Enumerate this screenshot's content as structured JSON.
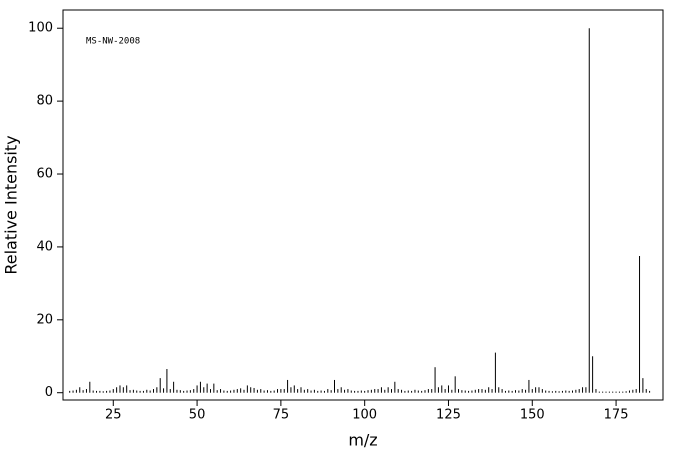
{
  "chart_data": {
    "type": "stem",
    "annotation": "MS-NW-2008",
    "xlabel": "m/z",
    "ylabel": "Relative Intensity",
    "color": "#000000",
    "xlim": [
      10,
      189
    ],
    "ylim": [
      -2,
      105
    ],
    "xticks": [
      25,
      50,
      75,
      100,
      125,
      150,
      175
    ],
    "yticks": [
      0,
      20,
      40,
      60,
      80,
      100
    ],
    "x": [
      12,
      13,
      14,
      15,
      16,
      17,
      18,
      19,
      20,
      21,
      22,
      23,
      24,
      25,
      26,
      27,
      28,
      29,
      30,
      31,
      32,
      33,
      34,
      35,
      36,
      37,
      38,
      39,
      40,
      41,
      42,
      43,
      44,
      45,
      46,
      47,
      48,
      49,
      50,
      51,
      52,
      53,
      54,
      55,
      56,
      57,
      58,
      59,
      60,
      61,
      62,
      63,
      64,
      65,
      66,
      67,
      68,
      69,
      70,
      71,
      72,
      73,
      74,
      75,
      76,
      77,
      78,
      79,
      80,
      81,
      82,
      83,
      84,
      85,
      86,
      87,
      88,
      89,
      90,
      91,
      92,
      93,
      94,
      95,
      96,
      97,
      98,
      99,
      100,
      101,
      102,
      103,
      104,
      105,
      106,
      107,
      108,
      109,
      110,
      111,
      112,
      113,
      114,
      115,
      116,
      117,
      118,
      119,
      120,
      121,
      122,
      123,
      124,
      125,
      126,
      127,
      128,
      129,
      130,
      131,
      132,
      133,
      134,
      135,
      136,
      137,
      138,
      139,
      140,
      141,
      142,
      143,
      144,
      145,
      146,
      147,
      148,
      149,
      150,
      151,
      152,
      153,
      154,
      155,
      156,
      157,
      158,
      159,
      160,
      161,
      162,
      163,
      164,
      165,
      166,
      167,
      168,
      169,
      170,
      171,
      172,
      173,
      174,
      175,
      176,
      177,
      178,
      179,
      180,
      181,
      182,
      183,
      184,
      185
    ],
    "values": [
      0.5,
      0.6,
      0.8,
      1.5,
      0.7,
      1,
      3,
      0.6,
      0.5,
      0.5,
      0.4,
      0.5,
      0.6,
      1,
      1.5,
      2,
      1.5,
      2,
      0.7,
      0.8,
      0.6,
      0.5,
      0.5,
      0.8,
      0.6,
      1,
      1.5,
      4,
      1.2,
      6.5,
      1,
      3,
      0.8,
      0.7,
      0.5,
      0.6,
      0.7,
      1,
      2,
      3,
      1.5,
      2.5,
      1,
      2.5,
      0.7,
      1,
      0.6,
      0.5,
      0.6,
      0.8,
      1,
      1.2,
      0.8,
      2,
      1.5,
      1.3,
      0.8,
      1,
      0.6,
      0.7,
      0.5,
      0.6,
      1,
      1,
      1,
      3.5,
      1.5,
      2,
      1,
      1.5,
      0.8,
      1,
      0.6,
      0.8,
      0.5,
      0.6,
      0.5,
      1,
      0.7,
      3.5,
      1,
      1.5,
      0.8,
      1,
      0.6,
      0.5,
      0.5,
      0.6,
      0.5,
      0.7,
      0.8,
      1,
      1,
      1.5,
      0.8,
      1.5,
      1,
      3,
      1,
      0.8,
      0.5,
      0.6,
      0.5,
      0.8,
      0.6,
      0.5,
      0.7,
      1,
      1,
      7,
      1.5,
      2,
      1,
      2,
      0.8,
      4.5,
      1,
      0.7,
      0.6,
      0.5,
      0.6,
      0.8,
      1,
      1,
      0.8,
      1.5,
      1,
      11,
      1.5,
      1,
      0.5,
      0.6,
      0.5,
      0.7,
      0.6,
      1,
      0.8,
      3.5,
      1,
      1.5,
      1.5,
      1,
      0.6,
      0.5,
      0.4,
      0.5,
      0.4,
      0.5,
      0.6,
      0.5,
      0.6,
      0.8,
      1,
      1.5,
      1.5,
      100,
      10,
      1,
      0.3,
      0.3,
      0.3,
      0.3,
      0.3,
      0.3,
      0.3,
      0.3,
      0.4,
      0.6,
      0.8,
      1,
      37.5,
      4,
      1,
      0.5
    ]
  }
}
